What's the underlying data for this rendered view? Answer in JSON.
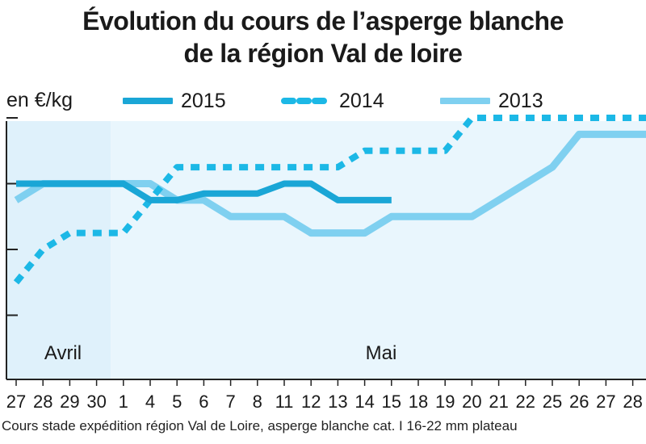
{
  "title_line1": "Évolution du cours de l’asperge blanche",
  "title_line2": "de la région Val de loire",
  "unit_label": "en €/kg",
  "footnote": "Cours stade expédition région Val de Loire, asperge blanche cat. I 16-22 mm plateau",
  "colors": {
    "s2015": "#1aa6d6",
    "s2014": "#1cb8e6",
    "s2013": "#7fd0f0",
    "bg_april": "#dff1fb",
    "bg_may": "#e9f6fd",
    "axis": "#222222",
    "grid": "#c8e4f2"
  },
  "chart_data": {
    "type": "line",
    "title": "Évolution du cours de l’asperge blanche de la région Val de loire",
    "ylabel": "en €/kg",
    "categories": [
      "27",
      "28",
      "29",
      "30",
      "1",
      "4",
      "5",
      "6",
      "7",
      "8",
      "11",
      "12",
      "13",
      "14",
      "15",
      "18",
      "19",
      "20",
      "21",
      "22",
      "25",
      "26",
      "27",
      "28"
    ],
    "month_labels": [
      {
        "text": "Avril",
        "category_index": 0
      },
      {
        "text": "Mai",
        "category_index": 13
      }
    ],
    "series": [
      {
        "name": "2015",
        "style": "solid-thick",
        "values": [
          3.0,
          3.0,
          3.0,
          3.0,
          3.0,
          2.75,
          2.75,
          2.85,
          2.85,
          2.85,
          3.0,
          3.0,
          2.75,
          2.75,
          2.75,
          null,
          null,
          null,
          null,
          null,
          null,
          null,
          null,
          null
        ]
      },
      {
        "name": "2014",
        "style": "dashed",
        "values": [
          1.5,
          2.0,
          2.25,
          2.25,
          2.25,
          2.75,
          3.25,
          3.25,
          3.25,
          3.25,
          3.25,
          3.25,
          3.25,
          3.5,
          3.5,
          3.5,
          3.5,
          4.0,
          4.0,
          4.0,
          4.0,
          4.0,
          4.0,
          4.0
        ]
      },
      {
        "name": "2013",
        "style": "solid-light",
        "values": [
          2.75,
          3.0,
          3.0,
          3.0,
          3.0,
          3.0,
          2.75,
          2.75,
          2.5,
          2.5,
          2.5,
          2.25,
          2.25,
          2.25,
          2.5,
          2.5,
          2.5,
          2.5,
          2.75,
          3.0,
          3.25,
          3.75,
          3.75,
          3.75
        ]
      }
    ]
  }
}
